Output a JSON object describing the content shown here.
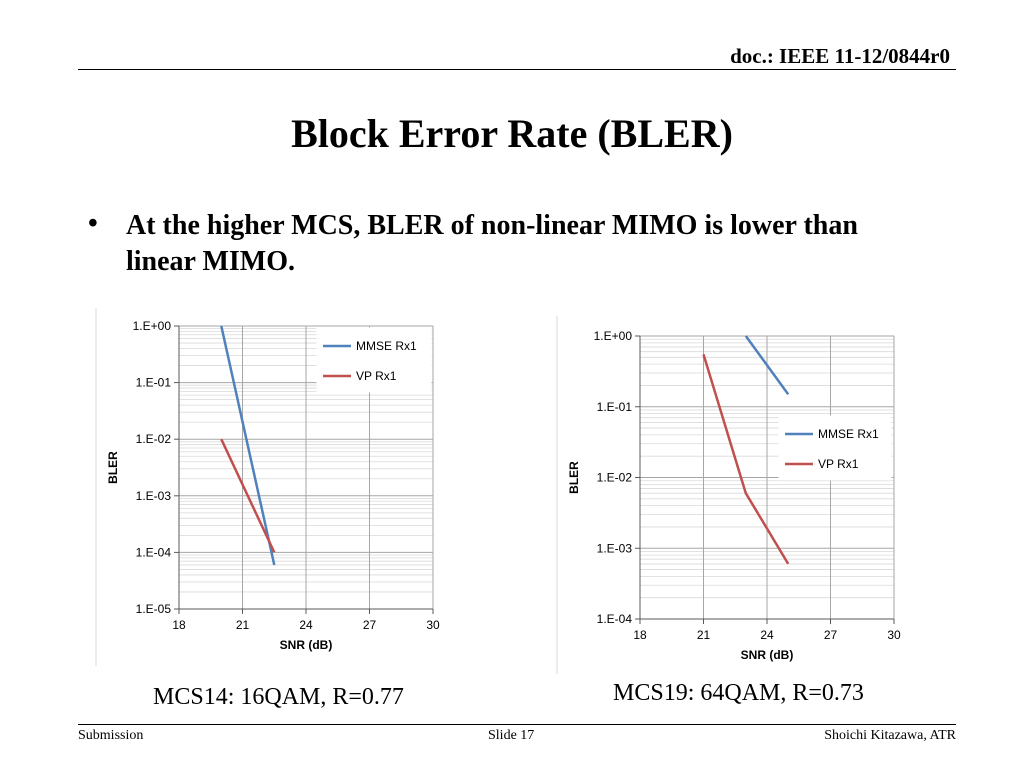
{
  "header": {
    "doc_id": "doc.: IEEE 11-12/0844r0"
  },
  "slide": {
    "title": "Block Error Rate (BLER)",
    "bullet": "At the higher MCS, BLER of non-linear MIMO is lower than linear MIMO."
  },
  "captions": {
    "left": "MCS14: 16QAM, R=0.77",
    "right": "MCS19: 64QAM, R=0.73"
  },
  "footer": {
    "left": "Submission",
    "center": "Slide 17",
    "right": "Shoichi Kitazawa, ATR"
  },
  "colors": {
    "mmse": "#4f81bd",
    "vp": "#c0504d"
  },
  "chart_data": [
    {
      "type": "line",
      "xlabel": "SNR (dB)",
      "ylabel": "BLER",
      "y_scale": "log",
      "xlim": [
        18,
        30
      ],
      "ylim_exp": [
        -5,
        0
      ],
      "x_ticks": [
        "18",
        "21",
        "24",
        "27",
        "30"
      ],
      "y_ticks": [
        "1.E-05",
        "1.E-04",
        "1.E-03",
        "1.E-02",
        "1.E-01",
        "1.E+00"
      ],
      "grid": true,
      "legend": "top-right",
      "series": [
        {
          "name": "MMSE Rx1",
          "x": [
            20.0,
            22.5
          ],
          "y": [
            1.0,
            6e-05
          ]
        },
        {
          "name": "VP Rx1",
          "x": [
            20.0,
            22.5
          ],
          "y": [
            0.01,
            0.0001
          ]
        }
      ]
    },
    {
      "type": "line",
      "xlabel": "SNR (dB)",
      "ylabel": "BLER",
      "y_scale": "log",
      "xlim": [
        18,
        30
      ],
      "ylim_exp": [
        -4,
        0
      ],
      "x_ticks": [
        "18",
        "21",
        "24",
        "27",
        "30"
      ],
      "y_ticks": [
        "1.E-04",
        "1.E-03",
        "1.E-02",
        "1.E-01",
        "1.E+00"
      ],
      "grid": true,
      "legend": "right",
      "series": [
        {
          "name": "MMSE Rx1",
          "x": [
            23.0,
            25.0
          ],
          "y": [
            1.0,
            0.15
          ]
        },
        {
          "name": "VP Rx1",
          "x": [
            21.0,
            23.0,
            25.0
          ],
          "y": [
            0.55,
            0.006,
            0.0006
          ]
        }
      ]
    }
  ]
}
